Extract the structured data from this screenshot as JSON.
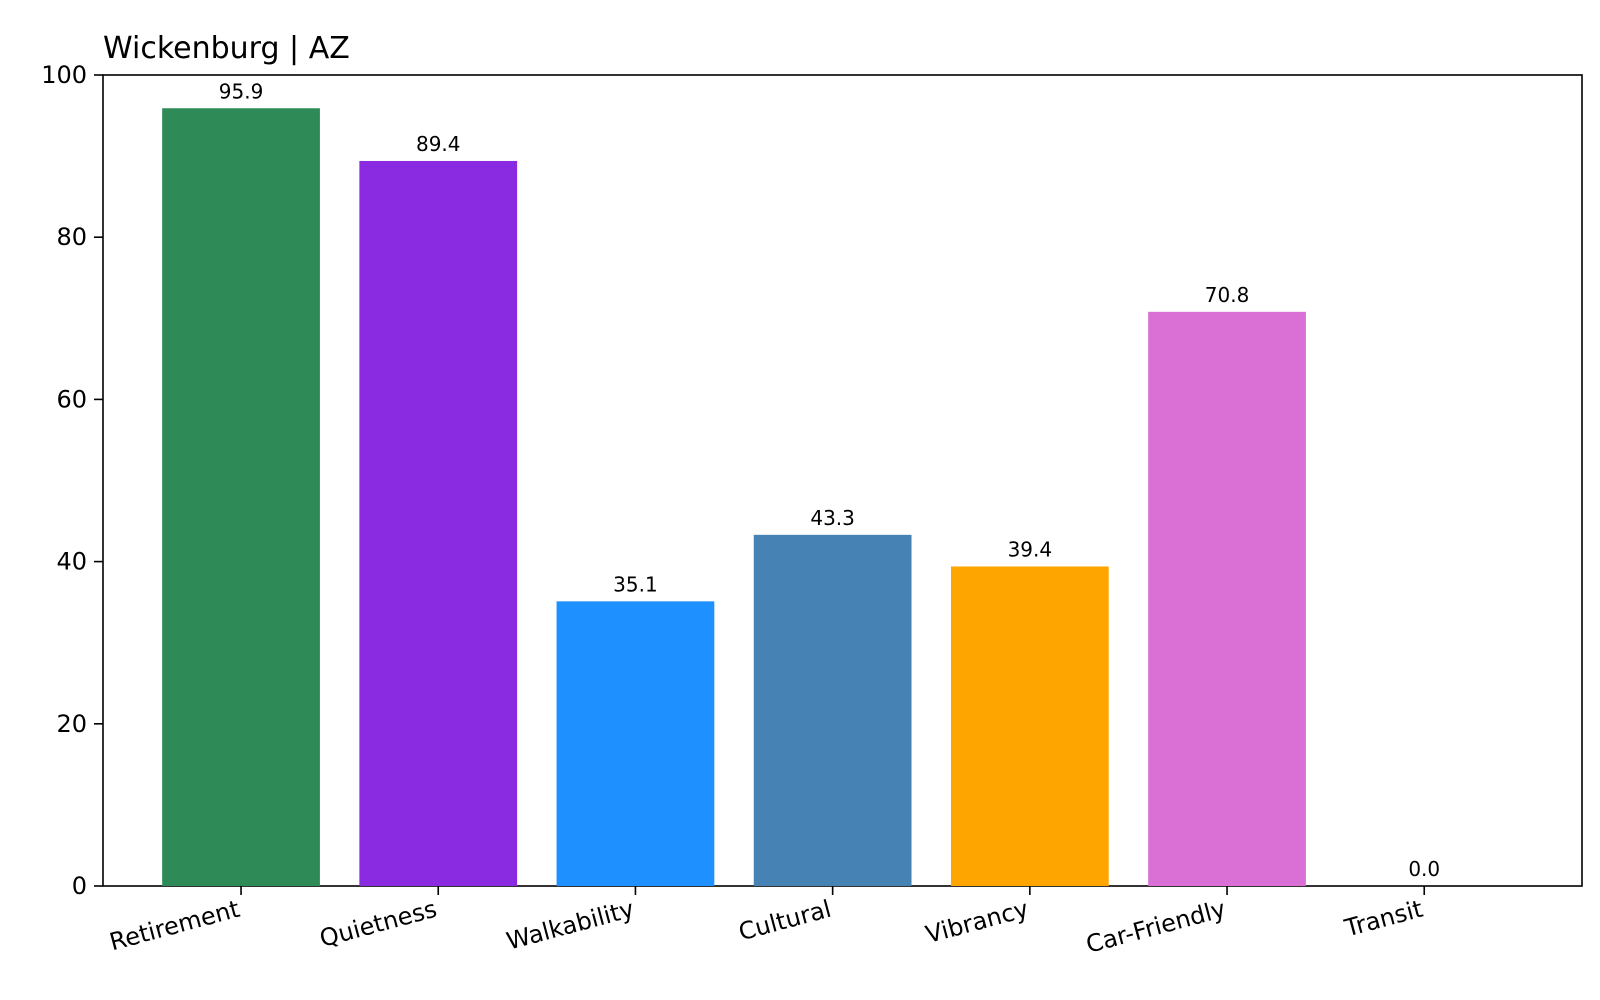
{
  "chart_data": {
    "type": "bar",
    "title": "Wickenburg | AZ",
    "xlabel": "",
    "ylabel": "",
    "categories": [
      "Retirement",
      "Quietness",
      "Walkability",
      "Cultural",
      "Vibrancy",
      "Car-Friendly",
      "Transit"
    ],
    "values": [
      95.9,
      89.4,
      35.1,
      43.3,
      39.4,
      70.8,
      0.0
    ],
    "value_labels": [
      "95.9",
      "89.4",
      "35.1",
      "43.3",
      "39.4",
      "70.8",
      "0.0"
    ],
    "colors": [
      "#2e8b57",
      "#8a2be2",
      "#1e90ff",
      "#4682b4",
      "#ffa500",
      "#da70d6",
      "#808080"
    ],
    "ylim": [
      0,
      100
    ],
    "yticks": [
      0,
      20,
      40,
      60,
      80,
      100
    ],
    "ytick_labels": [
      "0",
      "20",
      "40",
      "60",
      "80",
      "100"
    ],
    "grid": false,
    "legend": "none"
  }
}
